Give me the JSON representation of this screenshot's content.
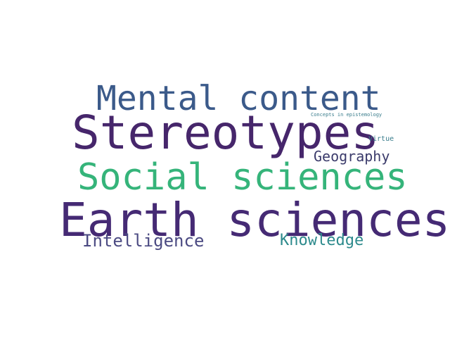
{
  "words": [
    {
      "id": "mental",
      "text": "Mental content",
      "color": "#3b5a8a"
    },
    {
      "id": "stereo",
      "text": "Stereotypes",
      "color": "#46266b"
    },
    {
      "id": "concepts",
      "text": "Concepts in epistemology",
      "color": "#3a7d8c"
    },
    {
      "id": "virtue",
      "text": "Virtue",
      "color": "#3a7d8c"
    },
    {
      "id": "geo",
      "text": "Geography",
      "color": "#3b3b6b"
    },
    {
      "id": "social",
      "text": "Social sciences",
      "color": "#35b47a"
    },
    {
      "id": "earth",
      "text": "Earth sciences",
      "color": "#452a74"
    },
    {
      "id": "intel",
      "text": "Intelligence",
      "color": "#4b4a82"
    },
    {
      "id": "know",
      "text": "Knowledge",
      "color": "#2d8a8c"
    }
  ]
}
